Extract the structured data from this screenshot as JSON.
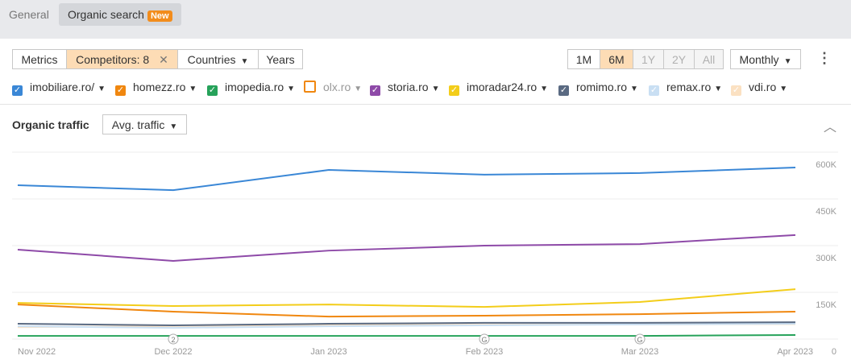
{
  "tabs": [
    {
      "label": "General"
    },
    {
      "label": "Organic search",
      "badge": "New"
    }
  ],
  "toolbar": {
    "filters": [
      "Metrics",
      "Competitors: 8",
      "Countries",
      "Years"
    ],
    "periods": [
      "1M",
      "6M",
      "1Y",
      "2Y",
      "All"
    ],
    "interval": "Monthly"
  },
  "chart_data": {
    "type": "line",
    "title": "Organic traffic",
    "metric": "Avg. traffic",
    "categories": [
      "Nov 2022",
      "Dec 2022",
      "Jan 2023",
      "Feb 2023",
      "Mar 2023",
      "Apr 2023"
    ],
    "markers": [
      null,
      "2",
      null,
      "G",
      "G",
      null
    ],
    "ylim": [
      0,
      600000
    ],
    "yticks": [
      0,
      {
        "value": 150000,
        "label": "150K"
      },
      {
        "value": 300000,
        "label": "300K"
      },
      {
        "value": 450000,
        "label": "450K"
      },
      {
        "value": 600000,
        "label": "600K"
      }
    ],
    "grid": true,
    "series": [
      {
        "name": "imobiliare.ro/",
        "color": "#3a87d6",
        "checked": true,
        "values": [
          494000,
          478000,
          543000,
          528000,
          533000,
          551000
        ]
      },
      {
        "name": "homezz.ro",
        "color": "#f0870f",
        "checked": true,
        "values": [
          111000,
          88000,
          72000,
          75000,
          80000,
          88000
        ]
      },
      {
        "name": "imopedia.ro",
        "color": "#26a25a",
        "checked": true,
        "values": [
          10000,
          10000,
          10000,
          10000,
          10000,
          13000
        ]
      },
      {
        "name": "olx.ro",
        "color": "#f0870f",
        "checked": false
      },
      {
        "name": "storia.ro",
        "color": "#8e4aa8",
        "checked": true,
        "values": [
          287000,
          251000,
          284000,
          300000,
          305000,
          334000
        ]
      },
      {
        "name": "imoradar24.ro",
        "color": "#f3cd1a",
        "checked": true,
        "values": [
          116000,
          106000,
          111000,
          103000,
          119000,
          160000
        ]
      },
      {
        "name": "romimo.ro",
        "color": "#5a6a82",
        "checked": true,
        "values": [
          49000,
          44000,
          49000,
          52000,
          52000,
          54000
        ]
      },
      {
        "name": "remax.ro",
        "color": "#c9dff3",
        "checked": true,
        "values": [
          41000,
          36000,
          41000,
          44000,
          47000,
          49000
        ]
      },
      {
        "name": "vdi.ro",
        "color": "#fbe1c2",
        "checked": true,
        "values": [
          38000,
          42000,
          45000,
          46000,
          47000,
          48000
        ]
      }
    ]
  }
}
